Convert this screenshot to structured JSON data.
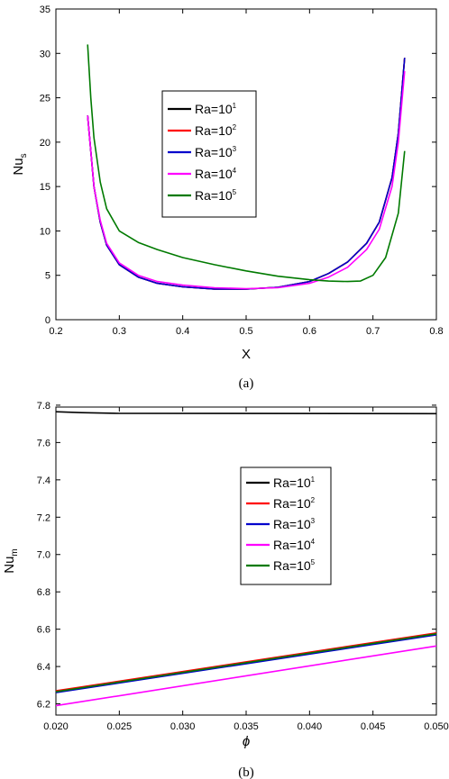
{
  "chart_data": [
    {
      "type": "line",
      "panel": "(a)",
      "xlabel": "X",
      "ylabel_main": "Nu",
      "ylabel_sub": "s",
      "xlim": [
        0.2,
        0.8
      ],
      "ylim": [
        0,
        35
      ],
      "xticks": [
        "0.2",
        "0.3",
        "0.4",
        "0.5",
        "0.6",
        "0.7",
        "0.8"
      ],
      "yticks": [
        "0",
        "5",
        "10",
        "15",
        "20",
        "25",
        "30",
        "35"
      ],
      "legend_position": "upper-center",
      "series": [
        {
          "name": "Ra=10",
          "sup": "1",
          "color": "#000000",
          "x": [
            0.25,
            0.26,
            0.27,
            0.28,
            0.3,
            0.33,
            0.36,
            0.4,
            0.45,
            0.5,
            0.55,
            0.6,
            0.63,
            0.66,
            0.69,
            0.71,
            0.73,
            0.74,
            0.75
          ],
          "y": [
            23.0,
            15.0,
            11.0,
            8.4,
            6.2,
            4.8,
            4.1,
            3.7,
            3.45,
            3.45,
            3.65,
            4.3,
            5.2,
            6.5,
            8.6,
            11.0,
            16.0,
            21.0,
            29.5
          ]
        },
        {
          "name": "Ra=10",
          "sup": "2",
          "color": "#ff0000",
          "x": [
            0.25,
            0.26,
            0.27,
            0.28,
            0.3,
            0.33,
            0.36,
            0.4,
            0.45,
            0.5,
            0.55,
            0.6,
            0.63,
            0.66,
            0.69,
            0.71,
            0.73,
            0.74,
            0.75
          ],
          "y": [
            23.0,
            15.0,
            11.0,
            8.4,
            6.2,
            4.8,
            4.1,
            3.7,
            3.45,
            3.45,
            3.65,
            4.3,
            5.2,
            6.5,
            8.6,
            11.0,
            16.0,
            21.0,
            29.5
          ]
        },
        {
          "name": "Ra=10",
          "sup": "3",
          "color": "#0000cc",
          "x": [
            0.25,
            0.26,
            0.27,
            0.28,
            0.3,
            0.33,
            0.36,
            0.4,
            0.45,
            0.5,
            0.55,
            0.6,
            0.63,
            0.66,
            0.69,
            0.71,
            0.73,
            0.74,
            0.75
          ],
          "y": [
            23.0,
            15.0,
            11.0,
            8.4,
            6.2,
            4.8,
            4.1,
            3.7,
            3.45,
            3.45,
            3.65,
            4.3,
            5.2,
            6.5,
            8.6,
            11.0,
            16.0,
            21.0,
            29.5
          ]
        },
        {
          "name": "Ra=10",
          "sup": "4",
          "color": "#ff00ff",
          "x": [
            0.25,
            0.26,
            0.27,
            0.28,
            0.3,
            0.33,
            0.36,
            0.4,
            0.45,
            0.5,
            0.55,
            0.6,
            0.63,
            0.66,
            0.69,
            0.71,
            0.73,
            0.74,
            0.75
          ],
          "y": [
            23.0,
            15.0,
            11.2,
            8.6,
            6.4,
            5.0,
            4.3,
            3.9,
            3.6,
            3.5,
            3.6,
            4.1,
            4.8,
            5.9,
            7.9,
            10.2,
            15.0,
            20.0,
            28.0
          ]
        },
        {
          "name": "Ra=10",
          "sup": "5",
          "color": "#007a00",
          "x": [
            0.25,
            0.255,
            0.26,
            0.27,
            0.28,
            0.3,
            0.33,
            0.36,
            0.4,
            0.45,
            0.5,
            0.55,
            0.6,
            0.63,
            0.66,
            0.68,
            0.7,
            0.72,
            0.74,
            0.75
          ],
          "y": [
            31.0,
            25.0,
            20.5,
            15.5,
            12.5,
            10.0,
            8.7,
            7.9,
            7.0,
            6.2,
            5.5,
            4.9,
            4.5,
            4.35,
            4.3,
            4.35,
            5.0,
            7.0,
            12.0,
            19.0
          ]
        }
      ]
    },
    {
      "type": "line",
      "panel": "(b)",
      "xlabel": "ϕ",
      "ylabel_main": "Nu",
      "ylabel_sub": "m",
      "xlim": [
        0.02,
        0.05
      ],
      "ylim": [
        6.14,
        7.79
      ],
      "xticks": [
        "0.020",
        "0.025",
        "0.030",
        "0.035",
        "0.040",
        "0.045",
        "0.050"
      ],
      "yticks": [
        "6.2",
        "6.4",
        "6.6",
        "6.8",
        "7.0",
        "7.2",
        "7.4",
        "7.6",
        "7.8"
      ],
      "legend_position": "center-right",
      "series": [
        {
          "name": "Ra=10",
          "sup": "1",
          "color": "#000000",
          "x": [
            0.02,
            0.022,
            0.025,
            0.05
          ],
          "y": [
            7.765,
            7.76,
            7.756,
            7.755
          ]
        },
        {
          "name": "Ra=10",
          "sup": "2",
          "color": "#ff0000",
          "x": [
            0.02,
            0.05
          ],
          "y": [
            6.27,
            6.58
          ]
        },
        {
          "name": "Ra=10",
          "sup": "3",
          "color": "#0000cc",
          "x": [
            0.02,
            0.05
          ],
          "y": [
            6.26,
            6.57
          ]
        },
        {
          "name": "Ra=10",
          "sup": "4",
          "color": "#ff00ff",
          "x": [
            0.02,
            0.05
          ],
          "y": [
            6.19,
            6.51
          ]
        },
        {
          "name": "Ra=10",
          "sup": "5",
          "color": "#007a00",
          "x": [
            0.02,
            0.05
          ],
          "y": [
            6.265,
            6.575
          ]
        }
      ]
    }
  ]
}
